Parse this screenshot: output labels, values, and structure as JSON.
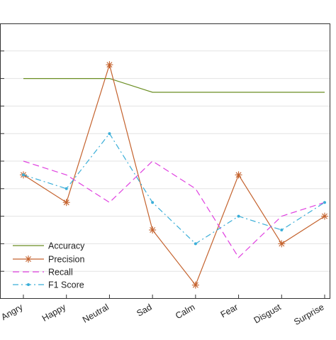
{
  "chart_data": {
    "type": "line",
    "categories": [
      "Angry",
      "Happy",
      "Neutral",
      "Sad",
      "Calm",
      "Fear",
      "Disgust",
      "Surprise"
    ],
    "ylim": [
      0,
      1.0
    ],
    "grid": true,
    "legend": "bottom-left",
    "series": [
      {
        "name": "Accuracy",
        "color": "#6b8e23",
        "style": "solid",
        "marker": "none",
        "values": [
          0.8,
          0.8,
          0.8,
          0.75,
          0.75,
          0.75,
          0.75,
          0.75
        ]
      },
      {
        "name": "Precision",
        "color": "#c4622d",
        "style": "solid",
        "marker": "asterisk",
        "values": [
          0.45,
          0.35,
          0.85,
          0.25,
          0.05,
          0.45,
          0.2,
          0.3
        ]
      },
      {
        "name": "Recall",
        "color": "#e040e0",
        "style": "dashed",
        "marker": "none",
        "values": [
          0.5,
          0.45,
          0.35,
          0.5,
          0.4,
          0.15,
          0.3,
          0.35
        ]
      },
      {
        "name": "F1 Score",
        "color": "#3aaed8",
        "style": "dashdot",
        "marker": "dot",
        "values": [
          0.45,
          0.4,
          0.6,
          0.35,
          0.2,
          0.3,
          0.25,
          0.35
        ]
      }
    ]
  }
}
